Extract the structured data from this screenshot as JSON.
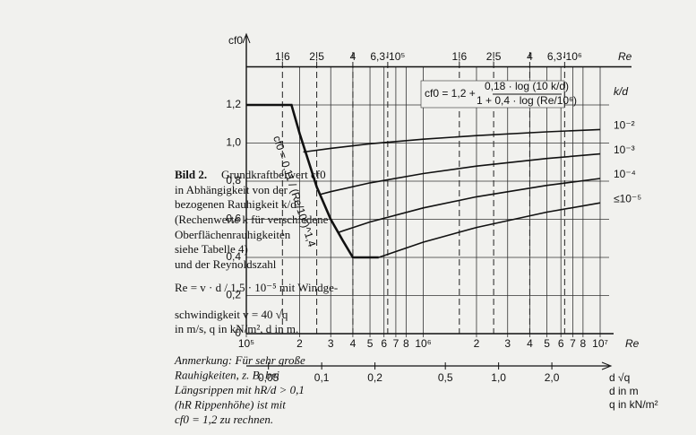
{
  "caption": {
    "label": "Bild 2.",
    "lines": [
      "Grundkraftbeiwert cf0",
      "in Abhängigkeit von der",
      "bezogenen Rauhigkeit k/d",
      "(Rechenwerte k für verschiedene",
      "Oberflächenrauhigkeiten",
      "siehe Tabelle 4)",
      "und der Reynoldszahl",
      "Re = v · d / 1,5 · 10⁻⁵  mit Windge-",
      "schwindigkeit v = 40 √q",
      "in m/s, q in kN/m², d in m."
    ],
    "note": [
      "Anmerkung: Für sehr große",
      "Rauhigkeiten, z. B. bei",
      "Längsrippen mit hR/d > 0,1",
      "(hR Rippenhöhe) ist mit",
      "cf0 = 1,2 zu rechnen."
    ]
  },
  "chart_data": {
    "type": "line",
    "log_x": true,
    "grid": true,
    "y_label": "cf0",
    "x_label": "Re",
    "legend_title": "k/d",
    "x2_label": [
      "d √q",
      "d in m",
      "q in kN/m²"
    ],
    "formula": {
      "lhs": "cf0 = 1,2 +",
      "num": "0,18 · log (10 k/d)",
      "den": "1 + 0,4 · log (Re/10⁶)"
    },
    "envelope_formula": "cf0 = 0,11 / (Re/10⁶)^1,4",
    "xlim": [
      100000,
      10000000
    ],
    "ylim": [
      0,
      1.4
    ],
    "yticks": [
      0,
      {
        "value": 0.2,
        "label": "0,2"
      },
      {
        "value": 0.4,
        "label": "0,4"
      },
      {
        "value": 0.6,
        "label": "0,6"
      },
      {
        "value": 0.8,
        "label": "0,8"
      },
      {
        "value": 1.0,
        "label": "1,0"
      },
      {
        "value": 1.2,
        "label": "1,2"
      }
    ],
    "xticks": [
      {
        "value": 100000,
        "label": "10⁵"
      },
      {
        "value": 200000,
        "label": "2"
      },
      {
        "value": 300000,
        "label": "3"
      },
      {
        "value": 400000,
        "label": "4"
      },
      {
        "value": 500000,
        "label": "5"
      },
      {
        "value": 600000,
        "label": "6"
      },
      {
        "value": 700000,
        "label": "7"
      },
      {
        "value": 800000,
        "label": "8"
      },
      {
        "value": 1000000,
        "label": "10⁶"
      },
      {
        "value": 2000000,
        "label": "2"
      },
      {
        "value": 3000000,
        "label": "3"
      },
      {
        "value": 4000000,
        "label": "4"
      },
      {
        "value": 5000000,
        "label": "5"
      },
      {
        "value": 6000000,
        "label": "6"
      },
      {
        "value": 7000000,
        "label": "7"
      },
      {
        "value": 8000000,
        "label": "8"
      },
      {
        "value": 10000000,
        "label": "10⁷"
      }
    ],
    "xticks_top": [
      {
        "value": 160000,
        "label": "1,6"
      },
      {
        "value": 250000,
        "label": "2,5"
      },
      {
        "value": 400000,
        "label": "4"
      },
      {
        "value": 630000,
        "label": "6,3·10⁵"
      },
      {
        "value": 1600000,
        "label": "1,6"
      },
      {
        "value": 2500000,
        "label": "2,5"
      },
      {
        "value": 4000000,
        "label": "4"
      },
      {
        "value": 6300000,
        "label": "6,3·10⁶"
      }
    ],
    "x2lim": [
      0.0375,
      3.75
    ],
    "x2ticks": [
      {
        "value": 0.05,
        "label": "0,05"
      },
      {
        "value": 0.1,
        "label": "0,1"
      },
      {
        "value": 0.2,
        "label": "0,2"
      },
      {
        "value": 0.5,
        "label": "0,5"
      },
      {
        "value": 1.0,
        "label": "1,0"
      },
      {
        "value": 2.0,
        "label": "2,0"
      }
    ],
    "envelope": {
      "color": "#111111",
      "x": [
        100000,
        180000,
        200000,
        250000,
        300000,
        350000,
        400000,
        560000
      ],
      "values": [
        1.2,
        1.2,
        1.05,
        0.77,
        0.6,
        0.49,
        0.4,
        0.4
      ]
    },
    "series": [
      {
        "name": "10⁻²",
        "color": "#111111",
        "x": [
          210000,
          300000,
          500000,
          1000000,
          2000000,
          5000000,
          10000000
        ],
        "values": [
          0.953,
          0.972,
          0.996,
          1.02,
          1.039,
          1.059,
          1.071
        ]
      },
      {
        "name": "10⁻³",
        "color": "#111111",
        "x": [
          260000,
          300000,
          500000,
          1000000,
          2000000,
          5000000,
          10000000
        ],
        "values": [
          0.73,
          0.745,
          0.791,
          0.84,
          0.879,
          0.919,
          0.943
        ]
      },
      {
        "name": "10⁻⁴",
        "color": "#111111",
        "x": [
          330000,
          500000,
          1000000,
          2000000,
          5000000,
          10000000
        ],
        "values": [
          0.531,
          0.586,
          0.66,
          0.718,
          0.778,
          0.814
        ]
      },
      {
        "name": "≤10⁻⁵",
        "color": "#111111",
        "x": [
          560000,
          1000000,
          2000000,
          5000000,
          10000000
        ],
        "values": [
          0.4,
          0.48,
          0.557,
          0.6375,
          0.686
        ]
      }
    ]
  }
}
